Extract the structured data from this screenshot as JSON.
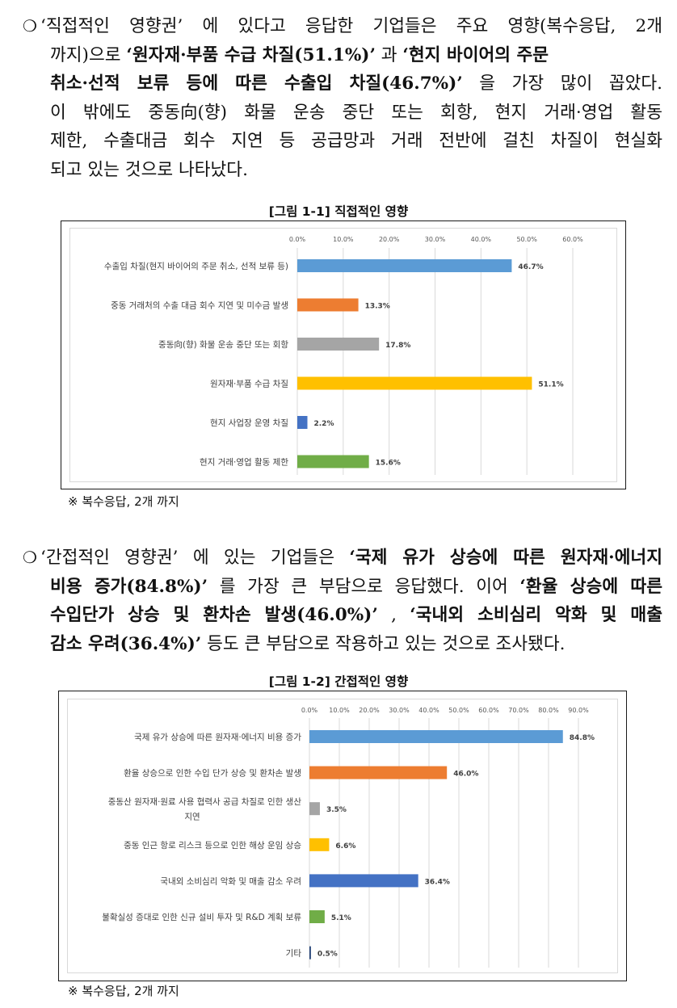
{
  "section1": {
    "bullet": "❍",
    "lines": [
      [
        {
          "t": "‘직접적인 영향권’ 에 있다고 응답한 기업들은 주요 영향(복수응답, 2개",
          "b": false
        }
      ],
      [
        {
          "t": "까지)으로 ",
          "b": false
        },
        {
          "t": "‘원자재·부품 수급 차질(51.1%)’",
          "b": true
        },
        {
          "t": " 과 ",
          "b": false
        },
        {
          "t": "‘현지 바이어의 주문",
          "b": true
        }
      ],
      [
        {
          "t": "취소·선적 보류 등에 따른 수출입 차질(46.7%)’",
          "b": true
        },
        {
          "t": " 을 가장 많이 꼽았다.",
          "b": false
        }
      ],
      [
        {
          "t": "이 밖에도 중동向(향) 화물 운송 중단 또는 회항, 현지 거래·영업 활동",
          "b": false
        }
      ],
      [
        {
          "t": "제한, 수출대금 회수 지연 등 공급망과 거래 전반에 걸친 차질이 현실화",
          "b": false
        }
      ],
      [
        {
          "t": "되고 있는 것으로 나타났다.",
          "b": false
        }
      ]
    ]
  },
  "figure1": {
    "title": "[그림 1-1] 직접적인 영향",
    "note": "※ 복수응답, 2개 까지"
  },
  "section2": {
    "bullet": "❍",
    "lines": [
      [
        {
          "t": "‘간접적인 영향권’ 에 있는 기업들은 ",
          "b": false
        },
        {
          "t": "‘국제 유가 상승에 따른 원자재·에너지",
          "b": true
        }
      ],
      [
        {
          "t": "비용 증가(84.8%)’",
          "b": true
        },
        {
          "t": " 를 가장 큰 부담으로 응답했다. 이어 ",
          "b": false
        },
        {
          "t": "‘환율 상승에 따른",
          "b": true
        }
      ],
      [
        {
          "t": "수입단가 상승 및 환차손 발생(46.0%)’",
          "b": true
        },
        {
          "t": " , ",
          "b": false
        },
        {
          "t": "‘국내외 소비심리 악화 및 매출",
          "b": true
        }
      ],
      [
        {
          "t": "감소 우려(36.4%)’",
          "b": true
        },
        {
          "t": " 등도 큰 부담으로 작용하고 있는 것으로 조사됐다.",
          "b": false
        }
      ]
    ]
  },
  "figure2": {
    "title": "[그림 1-2] 간접적인 영향",
    "note": "※ 복수응답, 2개 까지"
  },
  "chart_data": [
    {
      "type": "bar",
      "orientation": "horizontal",
      "title": "",
      "xlim": [
        0,
        60
      ],
      "ticks": [
        "0.0%",
        "10.0%",
        "20.0%",
        "30.0%",
        "40.0%",
        "50.0%",
        "60.0%"
      ],
      "grid": true,
      "categories": [
        [
          "수출입 차질(현지 바이어의 주문 취소, 선적 보류 등)"
        ],
        [
          "중동 거래처의 수출 대금 회수 지연 및 미수금 발생"
        ],
        [
          "중동向(향) 화물 운송 중단 또는 회항"
        ],
        [
          "원자재·부품 수급 차질"
        ],
        [
          "현지 사업장 운영 차질"
        ],
        [
          "현지 거래·영업 활동 제한"
        ]
      ],
      "values": [
        46.7,
        13.3,
        17.8,
        51.1,
        2.2,
        15.6
      ],
      "labels": [
        "46.7%",
        "13.3%",
        "17.8%",
        "51.1%",
        "2.2%",
        "15.6%"
      ],
      "colors": [
        "#5b9bd5",
        "#ed7d31",
        "#a5a5a5",
        "#ffc000",
        "#4472c4",
        "#70ad47"
      ]
    },
    {
      "type": "bar",
      "orientation": "horizontal",
      "title": "",
      "xlim": [
        0,
        90
      ],
      "ticks": [
        "0.0%",
        "10.0%",
        "20.0%",
        "30.0%",
        "40.0%",
        "50.0%",
        "60.0%",
        "70.0%",
        "80.0%",
        "90.0%"
      ],
      "grid": true,
      "categories": [
        [
          "국제 유가 상승에 따른 원자재·에너지 비용 증가"
        ],
        [
          "환율 상승으로 인한 수입 단가 상승 및 환차손 발생"
        ],
        [
          "중동산 원자재·원료 사용 협력사 공급 차질로 인한 생산",
          "지연"
        ],
        [
          "중동 인근 항로 리스크 등으로 인한 해상 운임 상승"
        ],
        [
          "국내외 소비심리 악화 및 매출 감소 우려"
        ],
        [
          "불확실성 증대로 인한 신규 설비 투자 및 R&D 계획 보류"
        ],
        [
          "기타"
        ]
      ],
      "values": [
        84.8,
        46.0,
        3.5,
        6.6,
        36.4,
        5.1,
        0.5
      ],
      "labels": [
        "84.8%",
        "46.0%",
        "3.5%",
        "6.6%",
        "36.4%",
        "5.1%",
        "0.5%"
      ],
      "colors": [
        "#5b9bd5",
        "#ed7d31",
        "#a5a5a5",
        "#ffc000",
        "#4472c4",
        "#70ad47",
        "#264478"
      ]
    }
  ]
}
